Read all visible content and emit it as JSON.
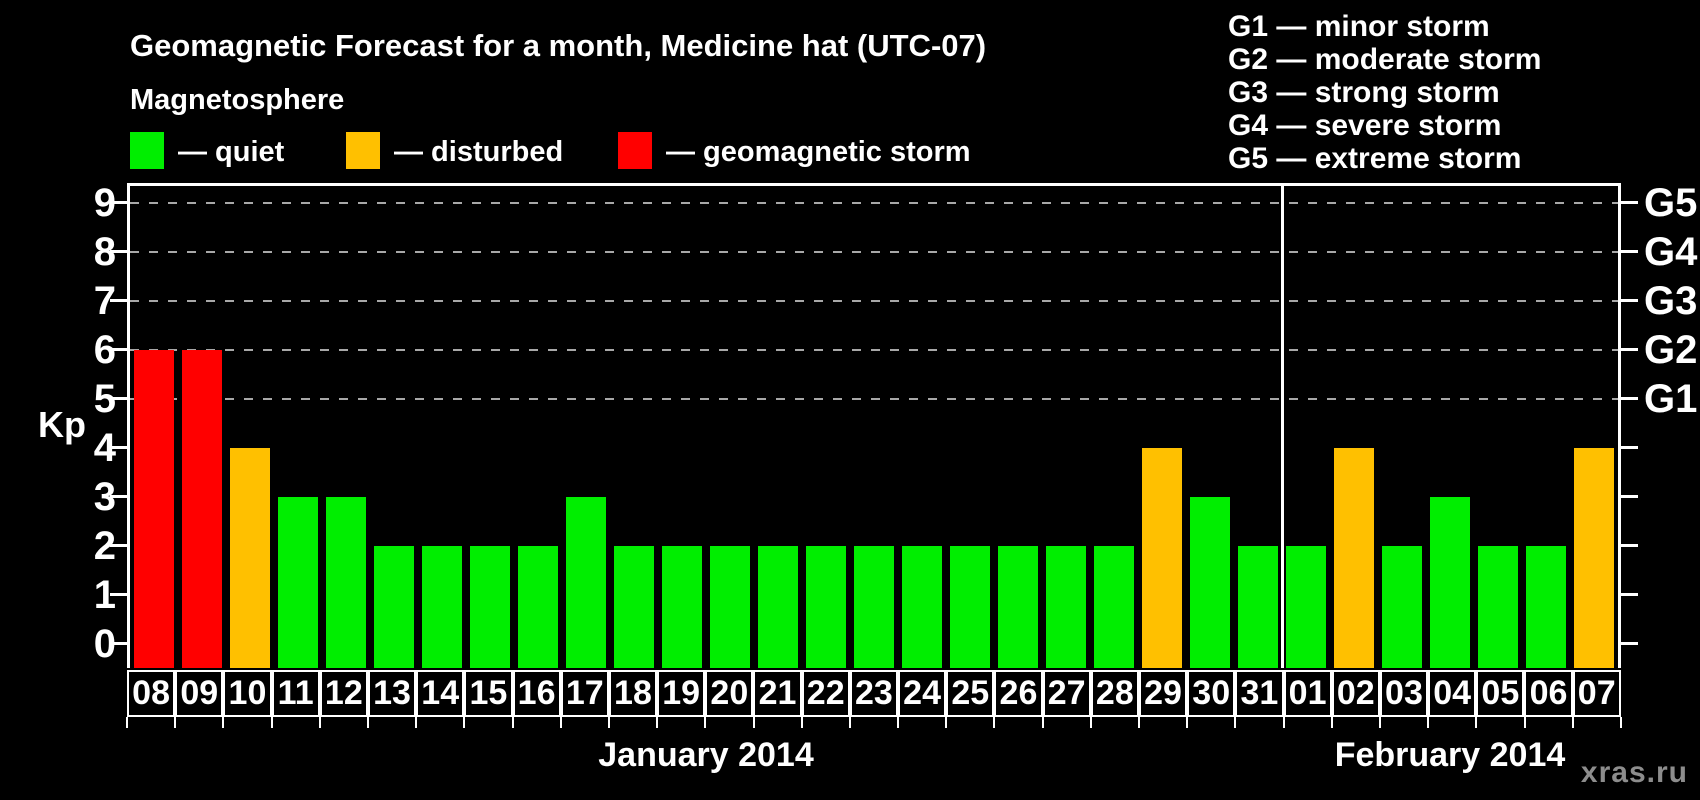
{
  "chart_data": {
    "type": "bar",
    "title": "Geomagnetic Forecast for a month, Medicine hat (UTC-07)",
    "ylabel": "Kp",
    "ylim": [
      0,
      9
    ],
    "y_ticks": [
      0,
      1,
      2,
      3,
      4,
      5,
      6,
      7,
      8,
      9
    ],
    "gridlines_at": [
      5,
      6,
      7,
      8,
      9
    ],
    "g_ticks": [
      {
        "value": 5,
        "label": "G1"
      },
      {
        "value": 6,
        "label": "G2"
      },
      {
        "value": 7,
        "label": "G3"
      },
      {
        "value": 8,
        "label": "G4"
      },
      {
        "value": 9,
        "label": "G5"
      }
    ],
    "months": [
      {
        "label": "January 2014",
        "days": 24
      },
      {
        "label": "February 2014",
        "days": 7
      }
    ],
    "bars": [
      {
        "date": "08",
        "month": "January 2014",
        "kp": 6,
        "condition": "storm"
      },
      {
        "date": "09",
        "month": "January 2014",
        "kp": 6,
        "condition": "storm"
      },
      {
        "date": "10",
        "month": "January 2014",
        "kp": 4,
        "condition": "disturbed"
      },
      {
        "date": "11",
        "month": "January 2014",
        "kp": 3,
        "condition": "quiet"
      },
      {
        "date": "12",
        "month": "January 2014",
        "kp": 3,
        "condition": "quiet"
      },
      {
        "date": "13",
        "month": "January 2014",
        "kp": 2,
        "condition": "quiet"
      },
      {
        "date": "14",
        "month": "January 2014",
        "kp": 2,
        "condition": "quiet"
      },
      {
        "date": "15",
        "month": "January 2014",
        "kp": 2,
        "condition": "quiet"
      },
      {
        "date": "16",
        "month": "January 2014",
        "kp": 2,
        "condition": "quiet"
      },
      {
        "date": "17",
        "month": "January 2014",
        "kp": 3,
        "condition": "quiet"
      },
      {
        "date": "18",
        "month": "January 2014",
        "kp": 2,
        "condition": "quiet"
      },
      {
        "date": "19",
        "month": "January 2014",
        "kp": 2,
        "condition": "quiet"
      },
      {
        "date": "20",
        "month": "January 2014",
        "kp": 2,
        "condition": "quiet"
      },
      {
        "date": "21",
        "month": "January 2014",
        "kp": 2,
        "condition": "quiet"
      },
      {
        "date": "22",
        "month": "January 2014",
        "kp": 2,
        "condition": "quiet"
      },
      {
        "date": "23",
        "month": "January 2014",
        "kp": 2,
        "condition": "quiet"
      },
      {
        "date": "24",
        "month": "January 2014",
        "kp": 2,
        "condition": "quiet"
      },
      {
        "date": "25",
        "month": "January 2014",
        "kp": 2,
        "condition": "quiet"
      },
      {
        "date": "26",
        "month": "January 2014",
        "kp": 2,
        "condition": "quiet"
      },
      {
        "date": "27",
        "month": "January 2014",
        "kp": 2,
        "condition": "quiet"
      },
      {
        "date": "28",
        "month": "January 2014",
        "kp": 2,
        "condition": "quiet"
      },
      {
        "date": "29",
        "month": "January 2014",
        "kp": 4,
        "condition": "disturbed"
      },
      {
        "date": "30",
        "month": "January 2014",
        "kp": 3,
        "condition": "quiet"
      },
      {
        "date": "31",
        "month": "January 2014",
        "kp": 2,
        "condition": "quiet"
      },
      {
        "date": "01",
        "month": "February 2014",
        "kp": 2,
        "condition": "quiet"
      },
      {
        "date": "02",
        "month": "February 2014",
        "kp": 4,
        "condition": "disturbed"
      },
      {
        "date": "03",
        "month": "February 2014",
        "kp": 2,
        "condition": "quiet"
      },
      {
        "date": "04",
        "month": "February 2014",
        "kp": 3,
        "condition": "quiet"
      },
      {
        "date": "05",
        "month": "February 2014",
        "kp": 2,
        "condition": "quiet"
      },
      {
        "date": "06",
        "month": "February 2014",
        "kp": 2,
        "condition": "quiet"
      },
      {
        "date": "07",
        "month": "February 2014",
        "kp": 4,
        "condition": "disturbed"
      }
    ]
  },
  "legend": {
    "heading": "Magnetosphere",
    "items": [
      {
        "key": "quiet",
        "label": "— quiet"
      },
      {
        "key": "disturbed",
        "label": "— disturbed"
      },
      {
        "key": "storm",
        "label": "— geomagnetic storm"
      }
    ]
  },
  "g_legend": [
    "G1 — minor storm",
    "G2 — moderate storm",
    "G3 — strong storm",
    "G4 — severe storm",
    "G5 — extreme storm"
  ],
  "colors": {
    "quiet": "#00ee00",
    "disturbed": "#ffc000",
    "storm": "#ff0000",
    "background": "#000000",
    "axis": "#ffffff",
    "grid": "#a8a8a8",
    "watermark_text": "#8d8d8d"
  },
  "watermark": "xras.ru"
}
